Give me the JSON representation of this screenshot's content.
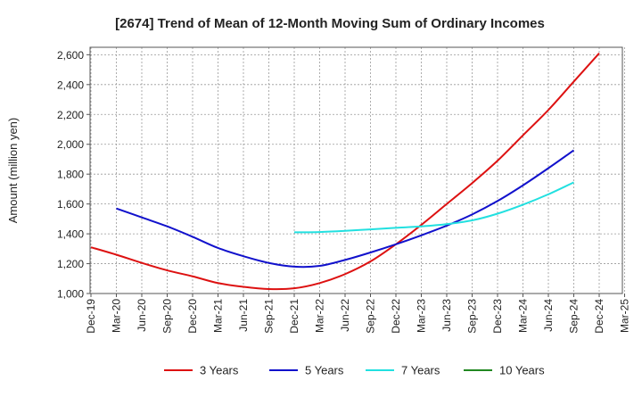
{
  "chart_data": {
    "type": "line",
    "title": "[2674]  Trend of Mean of 12-Month Moving Sum of Ordinary Incomes",
    "xlabel": "",
    "ylabel": "Amount (million yen)",
    "ylim": [
      1000,
      2650
    ],
    "yticks": [
      1000,
      1200,
      1400,
      1600,
      1800,
      2000,
      2200,
      2400,
      2600
    ],
    "ytick_labels": [
      "1,000",
      "1,200",
      "1,400",
      "1,600",
      "1,800",
      "2,000",
      "2,200",
      "2,400",
      "2,600"
    ],
    "x_categories": [
      "Dec-19",
      "Mar-20",
      "Jun-20",
      "Sep-20",
      "Dec-20",
      "Mar-21",
      "Jun-21",
      "Sep-21",
      "Dec-21",
      "Mar-22",
      "Jun-22",
      "Sep-22",
      "Dec-22",
      "Mar-23",
      "Jun-23",
      "Sep-23",
      "Dec-23",
      "Mar-24",
      "Jun-24",
      "Sep-24",
      "Dec-24",
      "Mar-25"
    ],
    "grid": true,
    "legend_position": "bottom",
    "series": [
      {
        "name": "3 Years",
        "color": "#dd1111",
        "start_index": 0,
        "values": [
          1310,
          1260,
          1205,
          1155,
          1115,
          1070,
          1045,
          1030,
          1035,
          1070,
          1130,
          1215,
          1330,
          1460,
          1600,
          1740,
          1890,
          2060,
          2230,
          2420,
          2610
        ]
      },
      {
        "name": "5 Years",
        "color": "#1111cc",
        "start_index": 1,
        "values": [
          1570,
          1510,
          1450,
          1380,
          1305,
          1250,
          1205,
          1180,
          1185,
          1225,
          1275,
          1330,
          1390,
          1455,
          1530,
          1620,
          1725,
          1840,
          1960
        ]
      },
      {
        "name": "7 Years",
        "color": "#22e0e0",
        "start_index": 8,
        "values": [
          1410,
          1412,
          1420,
          1430,
          1440,
          1450,
          1465,
          1490,
          1535,
          1595,
          1665,
          1745
        ]
      },
      {
        "name": "10 Years",
        "color": "#228822",
        "start_index": 21,
        "values": []
      }
    ]
  }
}
